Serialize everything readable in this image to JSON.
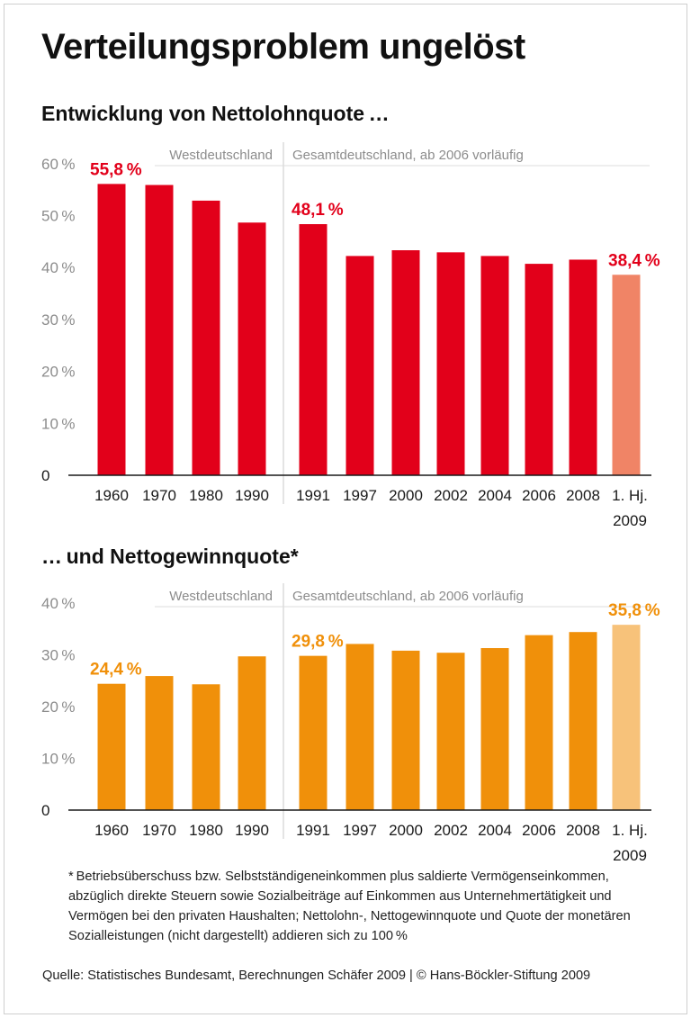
{
  "title": "Verteilungsproblem ungelöst",
  "chart_data": [
    {
      "type": "bar",
      "title": "Entwicklung von Nettolohnquote …",
      "region_labels": [
        "Westdeutschland",
        "Gesamtdeutschland, ab 2006 vorläufig"
      ],
      "categories": [
        "1960",
        "1970",
        "1980",
        "1990",
        "1991",
        "1997",
        "2000",
        "2002",
        "2004",
        "2006",
        "2008",
        "1. Hj. 2009"
      ],
      "values": [
        55.8,
        55.6,
        52.6,
        48.4,
        48.1,
        42.0,
        43.1,
        42.7,
        42.0,
        40.5,
        41.3,
        38.4
      ],
      "data_labels": [
        {
          "index": 0,
          "text": "55,8 %"
        },
        {
          "index": 4,
          "text": "48,1 %"
        },
        {
          "index": 11,
          "text": "38,4 %"
        }
      ],
      "y_ticks": [
        "0",
        "10 %",
        "20 %",
        "30 %",
        "40 %",
        "50 %",
        "60 %"
      ],
      "ylim": [
        0,
        60
      ],
      "colors": {
        "bar": "#e2001a",
        "highlight": "#f08466",
        "label": "#e2001a"
      },
      "grid": false
    },
    {
      "type": "bar",
      "title": "… und Nettogewinnquote*",
      "region_labels": [
        "Westdeutschland",
        "Gesamtdeutschland, ab 2006 vorläufig"
      ],
      "categories": [
        "1960",
        "1970",
        "1980",
        "1990",
        "1991",
        "1997",
        "2000",
        "2002",
        "2004",
        "2006",
        "2008",
        "1. Hj. 2009"
      ],
      "values": [
        24.4,
        25.9,
        24.3,
        29.7,
        29.8,
        32.1,
        30.8,
        30.4,
        31.3,
        33.8,
        34.4,
        35.8
      ],
      "data_labels": [
        {
          "index": 0,
          "text": "24,4 %"
        },
        {
          "index": 4,
          "text": "29,8 %"
        },
        {
          "index": 11,
          "text": "35,8 %"
        }
      ],
      "y_ticks": [
        "0",
        "10 %",
        "20 %",
        "30 %",
        "40 %"
      ],
      "ylim": [
        0,
        40
      ],
      "colors": {
        "bar": "#f0900a",
        "highlight": "#f7c27a",
        "label": "#f0900a"
      },
      "grid": false
    }
  ],
  "footnote": "* Betriebsüberschuss bzw. Selbstständigeneinkommen plus saldierte Vermögenseinkommen, abzüglich direkte Steuern sowie Sozialbeiträge auf Einkommen aus Unternehmertätigkeit und Vermögen bei den privaten Haushalten; Nettolohn-, Nettogewinnquote und Quote der monetären Sozialleistungen (nicht dargestellt) addieren sich zu 100 %",
  "source": "Quelle: Statistisches Bundesamt, Berechnungen Schäfer 2009 | © Hans-Böckler-Stiftung 2009",
  "colors": {
    "text": "#1a1a1a",
    "axis": "#1a1a1a",
    "muted": "#8c8c8c",
    "divider": "#c8c8c8"
  }
}
